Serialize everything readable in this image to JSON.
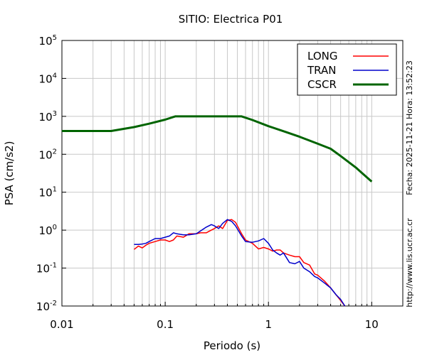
{
  "chart_data": {
    "type": "line",
    "title": "SITIO: Electrica P01",
    "xlabel": "Periodo (s)",
    "ylabel": "PSA (cm/s2)",
    "xscale": "log",
    "yscale": "log",
    "xlim": [
      0.01,
      20
    ],
    "ylim": [
      0.01,
      100000
    ],
    "grid": true,
    "legend_position": "top-right",
    "x_ticks": [
      {
        "value": 0.01,
        "label": "0.01"
      },
      {
        "value": 0.1,
        "label": "0.1"
      },
      {
        "value": 1,
        "label": "1"
      },
      {
        "value": 10,
        "label": "10"
      }
    ],
    "y_ticks": [
      {
        "value": 0.01,
        "base": "10",
        "exp": "-2"
      },
      {
        "value": 0.1,
        "base": "10",
        "exp": "-1"
      },
      {
        "value": 1,
        "base": "10",
        "exp": "0"
      },
      {
        "value": 10,
        "base": "10",
        "exp": "1"
      },
      {
        "value": 100,
        "base": "10",
        "exp": "2"
      },
      {
        "value": 1000,
        "base": "10",
        "exp": "3"
      },
      {
        "value": 10000,
        "base": "10",
        "exp": "4"
      },
      {
        "value": 100000,
        "base": "10",
        "exp": "5"
      }
    ],
    "side_notes": {
      "date": "Fecha: 2025-11-21 Hora: 13:52:23",
      "url": "http://www.lis.ucr.ac.cr"
    },
    "series": [
      {
        "name": "LONG",
        "color": "#ff0000",
        "x": [
          0.05,
          0.055,
          0.06,
          0.065,
          0.07,
          0.08,
          0.09,
          0.1,
          0.11,
          0.12,
          0.13,
          0.15,
          0.17,
          0.2,
          0.22,
          0.25,
          0.28,
          0.3,
          0.33,
          0.36,
          0.4,
          0.44,
          0.48,
          0.55,
          0.6,
          0.7,
          0.8,
          0.9,
          1.0,
          1.1,
          1.2,
          1.3,
          1.4,
          1.6,
          1.8,
          2.0,
          2.2,
          2.5,
          2.8,
          3.0,
          3.5,
          4.0,
          4.5,
          5.0,
          5.5
        ],
        "y": [
          0.31,
          0.38,
          0.34,
          0.4,
          0.45,
          0.5,
          0.55,
          0.55,
          0.5,
          0.55,
          0.7,
          0.65,
          0.8,
          0.8,
          0.85,
          0.85,
          1.0,
          1.1,
          1.3,
          1.1,
          1.8,
          1.9,
          1.6,
          0.8,
          0.55,
          0.45,
          0.32,
          0.35,
          0.32,
          0.28,
          0.3,
          0.3,
          0.25,
          0.22,
          0.2,
          0.2,
          0.14,
          0.12,
          0.07,
          0.065,
          0.045,
          0.03,
          0.02,
          0.014,
          0.01
        ]
      },
      {
        "name": "TRAN",
        "color": "#0000cc",
        "x": [
          0.05,
          0.055,
          0.06,
          0.065,
          0.07,
          0.08,
          0.09,
          0.1,
          0.11,
          0.12,
          0.13,
          0.15,
          0.17,
          0.2,
          0.22,
          0.25,
          0.28,
          0.3,
          0.33,
          0.36,
          0.4,
          0.44,
          0.48,
          0.55,
          0.6,
          0.7,
          0.8,
          0.9,
          1.0,
          1.1,
          1.2,
          1.3,
          1.4,
          1.6,
          1.8,
          2.0,
          2.2,
          2.5,
          2.8,
          3.0,
          3.5,
          4.0,
          4.5,
          5.0,
          5.5
        ],
        "y": [
          0.42,
          0.42,
          0.43,
          0.45,
          0.5,
          0.6,
          0.6,
          0.65,
          0.7,
          0.85,
          0.8,
          0.75,
          0.75,
          0.8,
          0.95,
          1.2,
          1.4,
          1.3,
          1.1,
          1.5,
          1.9,
          1.7,
          1.3,
          0.7,
          0.5,
          0.48,
          0.52,
          0.6,
          0.45,
          0.3,
          0.25,
          0.22,
          0.25,
          0.14,
          0.13,
          0.15,
          0.1,
          0.08,
          0.06,
          0.055,
          0.04,
          0.03,
          0.02,
          0.015,
          0.01
        ]
      },
      {
        "name": "CSCR",
        "color": "#006400",
        "x": [
          0.01,
          0.02,
          0.03,
          0.05,
          0.07,
          0.1,
          0.125,
          0.2,
          0.3,
          0.4,
          0.55,
          0.7,
          1.0,
          1.5,
          2.0,
          2.5,
          3.0,
          4.0,
          5.0,
          7.0,
          10.0
        ],
        "y": [
          410,
          410,
          410,
          520,
          640,
          820,
          1000,
          1000,
          1000,
          1000,
          1000,
          800,
          550,
          380,
          290,
          230,
          190,
          140,
          90,
          45,
          19
        ]
      }
    ]
  }
}
